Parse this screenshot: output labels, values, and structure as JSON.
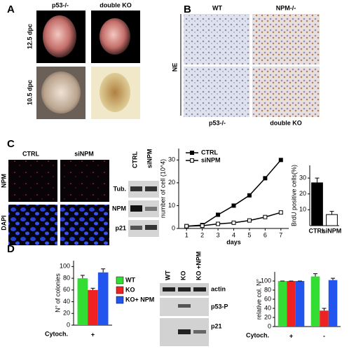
{
  "panels": {
    "A": {
      "letter": "A",
      "columns": [
        "p53-/-",
        "double KO"
      ],
      "rows": [
        "12.5 dpc",
        "10.5 dpc"
      ]
    },
    "B": {
      "letter": "B",
      "columns": [
        "WT",
        "NPM-/-"
      ],
      "bottom": [
        "p53-/-",
        "double KO"
      ],
      "side": "NE"
    },
    "C": {
      "letter": "C",
      "columns": [
        "CTRL",
        "siNPM"
      ],
      "rows": [
        "NPM",
        "DAPI"
      ],
      "blot_columns": [
        "CTRL",
        "siNPM"
      ],
      "blot_rows": [
        "Tub.",
        "NPM",
        "p21"
      ]
    },
    "D": {
      "letter": "D",
      "blot_columns": [
        "WT",
        "KO",
        "KO +NPM"
      ],
      "blot_rows": [
        "actin",
        "p53-P",
        "p21"
      ]
    }
  },
  "chart_data": [
    {
      "type": "line",
      "xlabel": "days",
      "ylabel": "number of cell (10^4)",
      "x": [
        1,
        2,
        3,
        4,
        5,
        6,
        7
      ],
      "xlim": [
        0.5,
        7.5
      ],
      "xticks": [
        1,
        2,
        3,
        4,
        5,
        6,
        7
      ],
      "ylim": [
        0,
        35
      ],
      "yticks": [
        0,
        10,
        20,
        30
      ],
      "legend": "upper left",
      "series": [
        {
          "name": "CTRL",
          "color": "#000000",
          "marker": "filled",
          "values": [
            1,
            1.5,
            6,
            10,
            14.5,
            22,
            30
          ]
        },
        {
          "name": "siNPM",
          "color": "#000000",
          "marker": "open",
          "values": [
            1,
            1.2,
            2,
            2.5,
            3.5,
            5,
            7
          ]
        }
      ]
    },
    {
      "type": "bar",
      "ylabel": "BrdU positive cells(%)",
      "categories": [
        "CTRL",
        "siNPM"
      ],
      "values": [
        27,
        7
      ],
      "errors": [
        3,
        2
      ],
      "colors": [
        "#000000",
        "#ffffff"
      ],
      "ylim": [
        0,
        38
      ],
      "yticks": [
        10,
        20,
        30
      ]
    },
    {
      "type": "grouped-bar",
      "ylabel": "N° of colonies",
      "xlabel": "Cytoch.",
      "categories": [
        "+"
      ],
      "ylim": [
        0,
        110
      ],
      "yticks": [
        0,
        20,
        40,
        60,
        80,
        100
      ],
      "legend": "right",
      "series": [
        {
          "name": "WT",
          "color": "#33dd33",
          "values": [
            80
          ],
          "errors": [
            5
          ]
        },
        {
          "name": "KO",
          "color": "#ee2222",
          "values": [
            60
          ],
          "errors": [
            3
          ]
        },
        {
          "name": "KO+ NPM",
          "color": "#2255ee",
          "values": [
            90
          ],
          "errors": [
            6
          ]
        }
      ]
    },
    {
      "type": "grouped-bar",
      "ylabel": "relative col. N°",
      "xlabel": "Cytoch.",
      "categories": [
        "+",
        "-"
      ],
      "ylim": [
        0,
        120
      ],
      "yticks": [
        0,
        20,
        40,
        60,
        80,
        100
      ],
      "series": [
        {
          "color": "#33dd33",
          "values": [
            100,
            110
          ],
          "errors": [
            0,
            6
          ]
        },
        {
          "color": "#ee2222",
          "values": [
            100,
            35
          ],
          "errors": [
            0,
            5
          ]
        },
        {
          "color": "#2255ee",
          "values": [
            100,
            102
          ],
          "errors": [
            0,
            4
          ]
        }
      ]
    }
  ]
}
